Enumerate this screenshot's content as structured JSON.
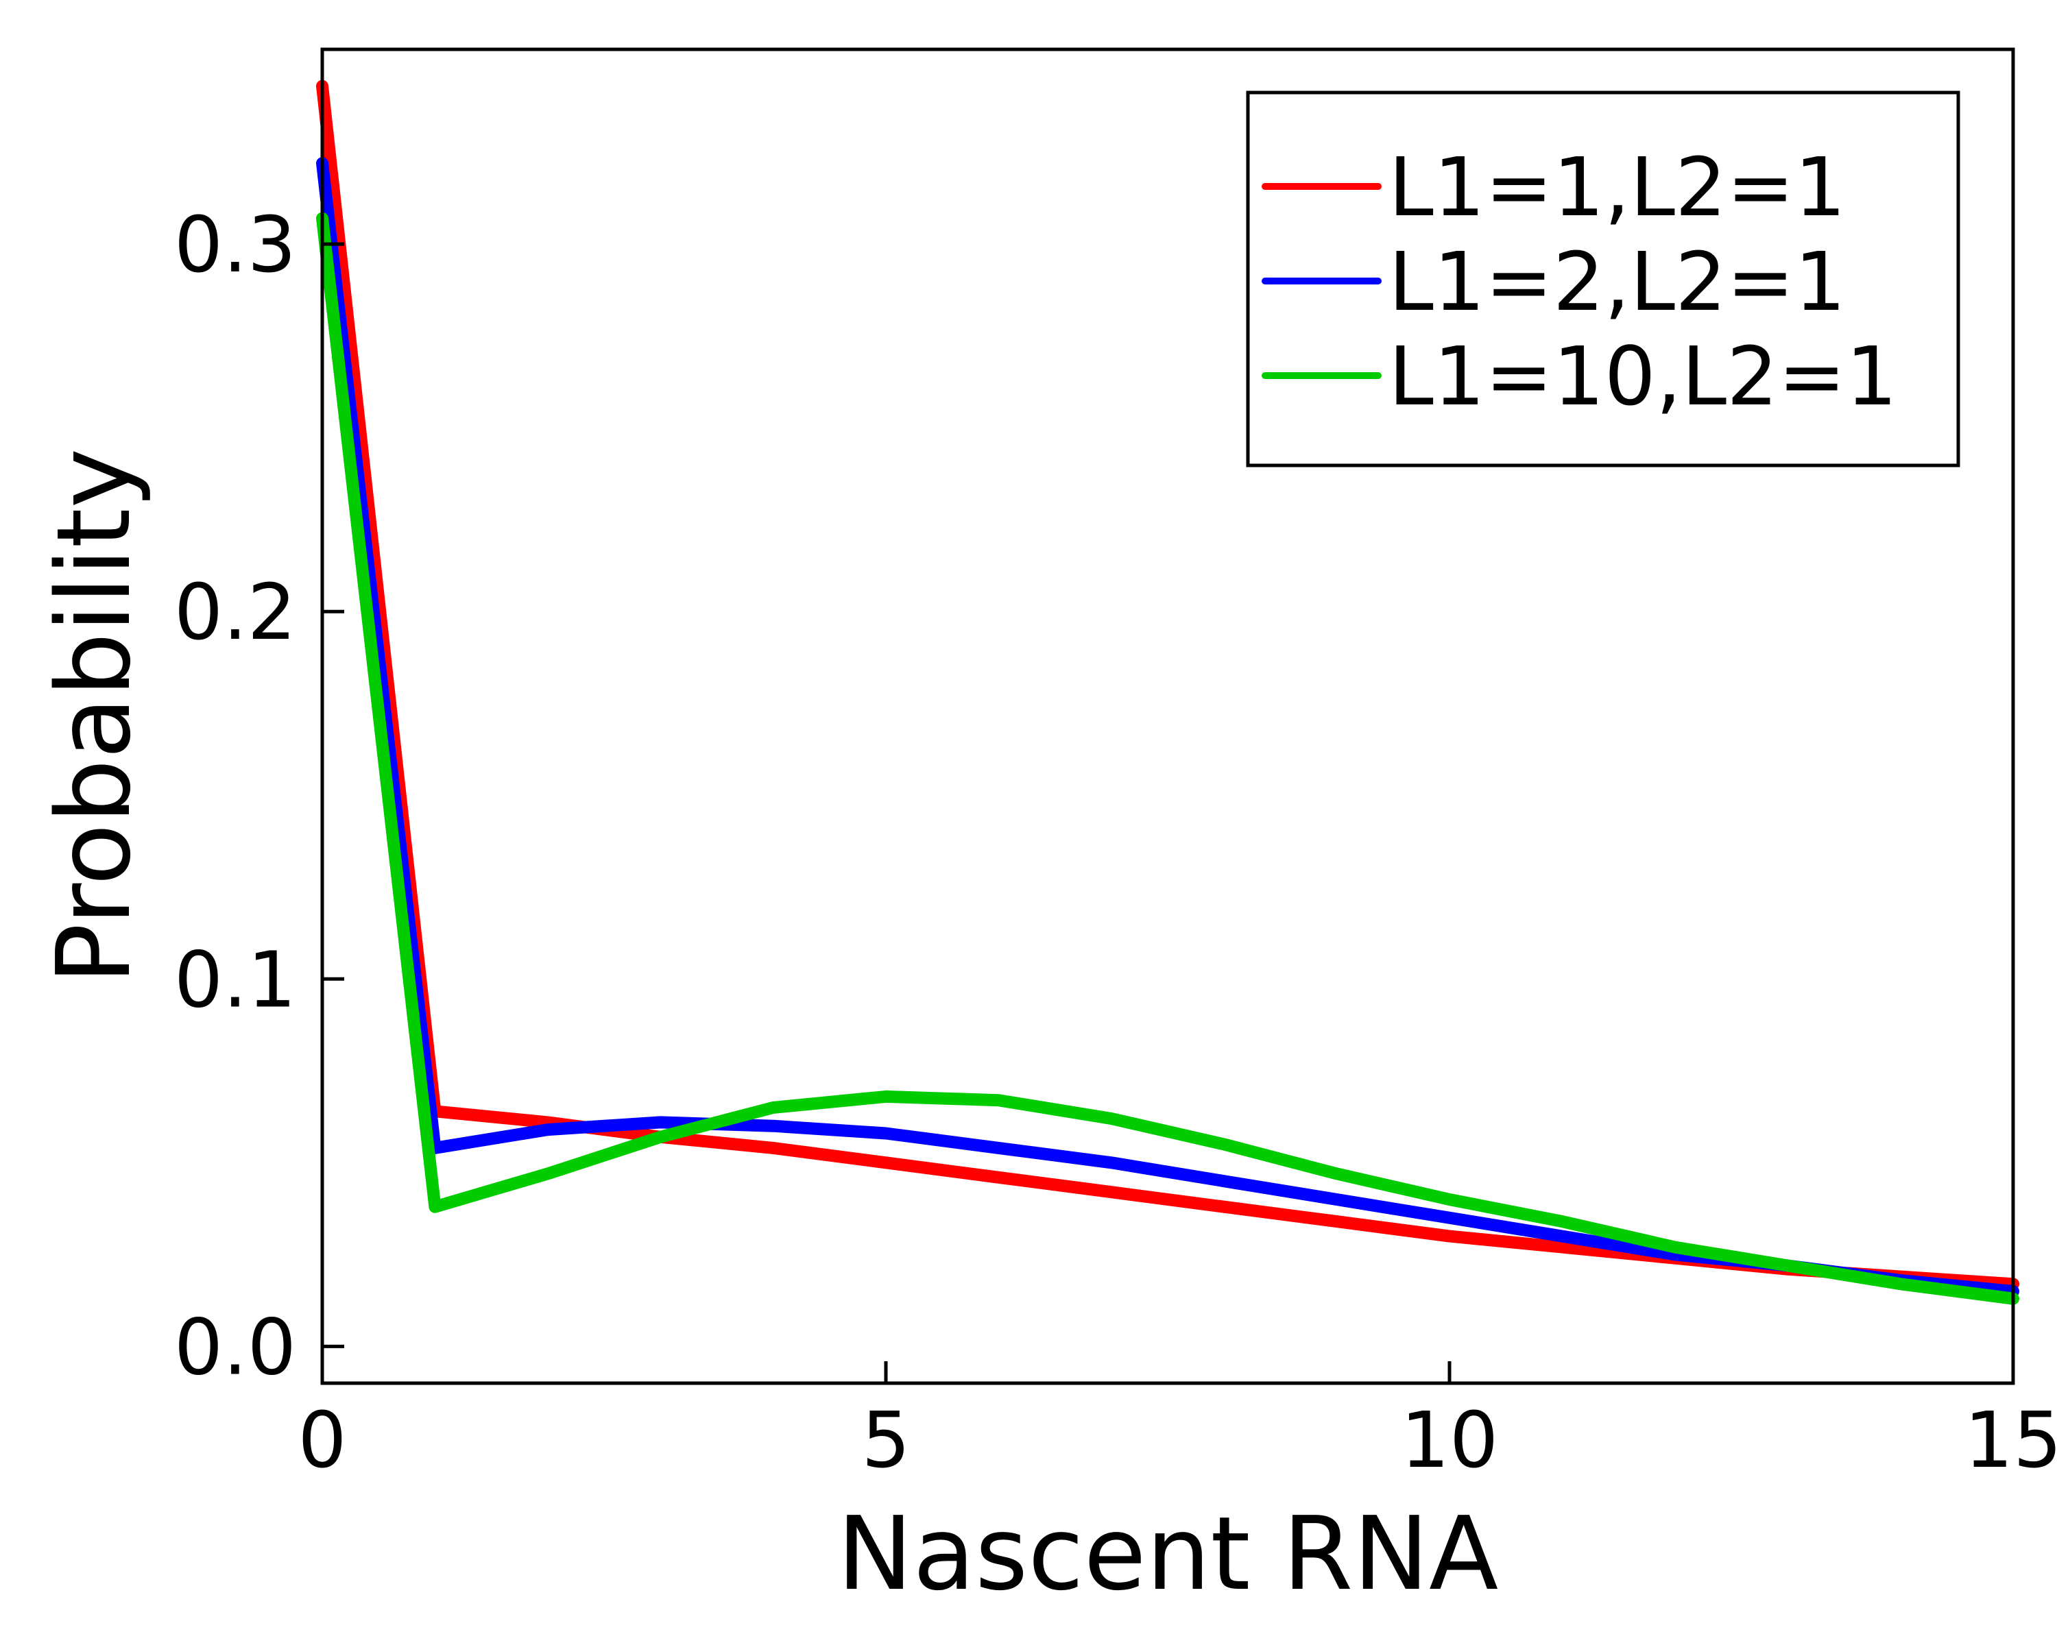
{
  "chart_data": {
    "type": "line",
    "xlabel": "Nascent RNA",
    "ylabel": "Probability",
    "xlim": [
      0,
      15
    ],
    "ylim": [
      -0.01,
      0.353
    ],
    "x_ticks": [
      0,
      5,
      10,
      15
    ],
    "x_tick_labels": [
      "0",
      "5",
      "10",
      "15"
    ],
    "y_ticks": [
      0.0,
      0.1,
      0.2,
      0.3
    ],
    "y_tick_labels": [
      "0.0",
      "0.1",
      "0.2",
      "0.3"
    ],
    "grid": false,
    "legend_position": "top-right",
    "x": [
      0,
      1,
      2,
      3,
      4,
      5,
      6,
      7,
      8,
      9,
      10,
      11,
      12,
      13,
      14,
      15
    ],
    "series": [
      {
        "name": "L1=1,L2=1",
        "color": "#ff0000",
        "values": [
          0.343,
          0.064,
          0.061,
          0.057,
          0.054,
          0.05,
          0.046,
          0.042,
          0.038,
          0.034,
          0.03,
          0.027,
          0.024,
          0.021,
          0.019,
          0.017
        ]
      },
      {
        "name": "L1=2,L2=1",
        "color": "#0000ff",
        "values": [
          0.322,
          0.054,
          0.059,
          0.061,
          0.06,
          0.058,
          0.054,
          0.05,
          0.045,
          0.04,
          0.035,
          0.03,
          0.025,
          0.022,
          0.018,
          0.015
        ]
      },
      {
        "name": "L1=10,L2=1",
        "color": "#00cc00",
        "values": [
          0.307,
          0.038,
          0.047,
          0.057,
          0.065,
          0.068,
          0.067,
          0.062,
          0.055,
          0.047,
          0.04,
          0.034,
          0.027,
          0.022,
          0.017,
          0.013
        ]
      }
    ]
  }
}
